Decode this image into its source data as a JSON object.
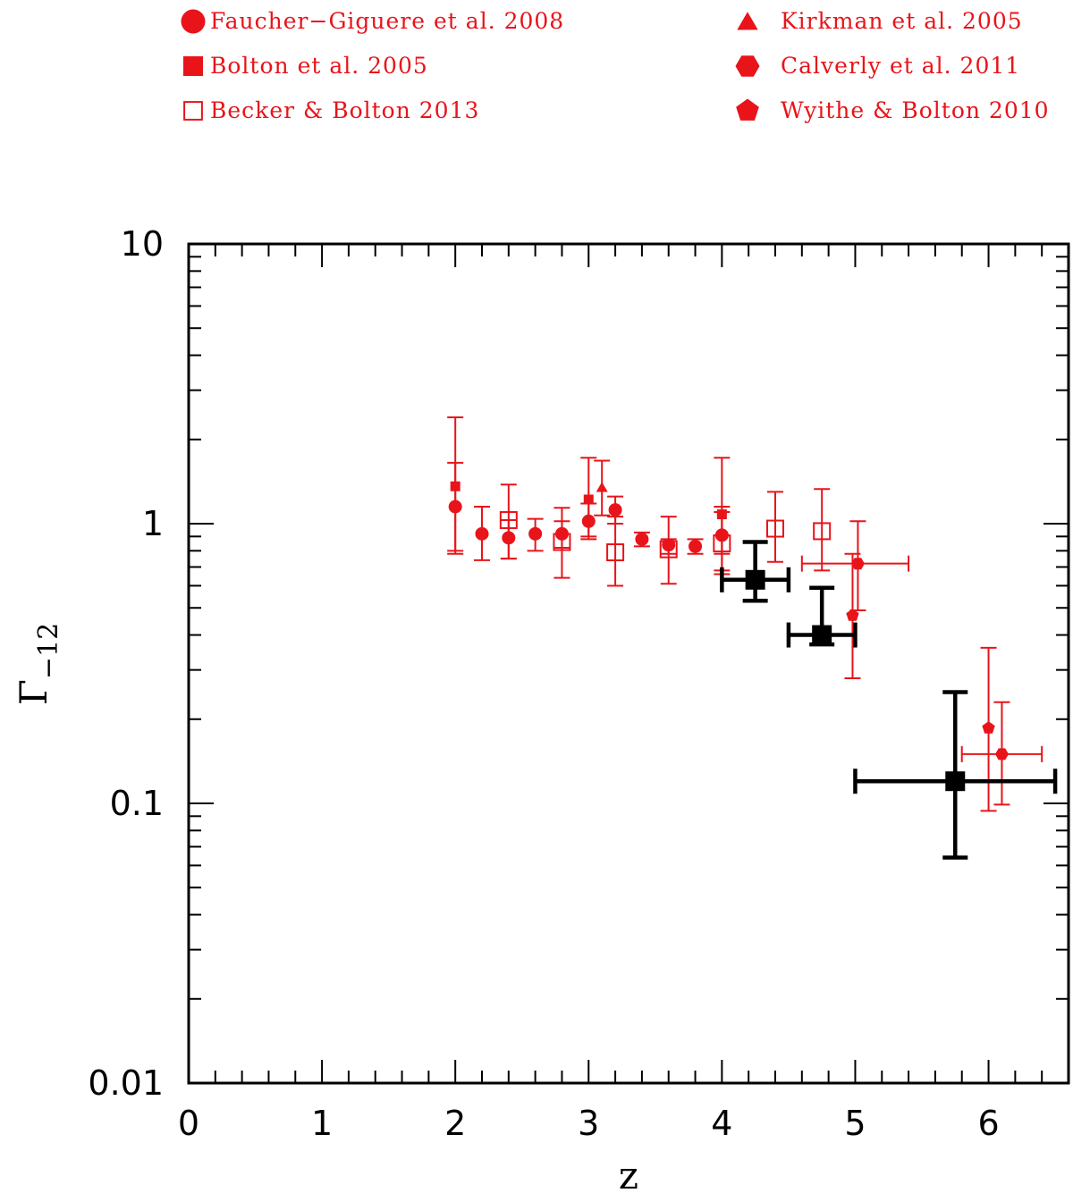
{
  "chart_data": {
    "type": "scatter",
    "xlabel": "z",
    "ylabel_main": "Γ",
    "ylabel_sub": "−12",
    "xlim": [
      0,
      6.6
    ],
    "ylim": [
      0.01,
      10
    ],
    "yscale": "log",
    "x_ticks": [
      {
        "value": 0,
        "label": "0"
      },
      {
        "value": 1,
        "label": "1"
      },
      {
        "value": 2,
        "label": "2"
      },
      {
        "value": 3,
        "label": "3"
      },
      {
        "value": 4,
        "label": "4"
      },
      {
        "value": 5,
        "label": "5"
      },
      {
        "value": 6,
        "label": "6"
      }
    ],
    "y_ticks": [
      {
        "value": 0.01,
        "label": "0.01"
      },
      {
        "value": 0.1,
        "label": "0.1"
      },
      {
        "value": 1,
        "label": "1"
      },
      {
        "value": 10,
        "label": "10"
      }
    ],
    "legend_position": "top",
    "series": [
      {
        "name": "Faucher−Giguere et al. 2008",
        "marker": "circle",
        "color": "#e8141a",
        "legend_col": 0,
        "legend_row": 0,
        "points": [
          {
            "x": 2.0,
            "y": 1.15,
            "ylo": 0.8,
            "yhi": 1.65
          },
          {
            "x": 2.2,
            "y": 0.92,
            "ylo": 0.74,
            "yhi": 1.15
          },
          {
            "x": 2.4,
            "y": 0.89,
            "ylo": 0.75,
            "yhi": 1.03
          },
          {
            "x": 2.6,
            "y": 0.92,
            "ylo": 0.8,
            "yhi": 1.04
          },
          {
            "x": 2.8,
            "y": 0.92,
            "ylo": 0.82,
            "yhi": 1.02
          },
          {
            "x": 3.0,
            "y": 1.02,
            "ylo": 0.88,
            "yhi": 1.18
          },
          {
            "x": 3.2,
            "y": 1.12,
            "ylo": 1.0,
            "yhi": 1.25
          },
          {
            "x": 3.4,
            "y": 0.88,
            "ylo": 0.83,
            "yhi": 0.93
          },
          {
            "x": 3.6,
            "y": 0.84,
            "ylo": 0.78,
            "yhi": 0.88
          },
          {
            "x": 3.8,
            "y": 0.83,
            "ylo": 0.78,
            "yhi": 0.88
          },
          {
            "x": 4.0,
            "y": 0.91,
            "ylo": 0.78,
            "yhi": 1.15
          }
        ]
      },
      {
        "name": "Bolton et al. 2005",
        "marker": "square-filled-small",
        "color": "#e8141a",
        "legend_col": 0,
        "legend_row": 1,
        "points": [
          {
            "x": 2.0,
            "y": 1.36,
            "ylo": 0.78,
            "yhi": 2.4
          },
          {
            "x": 3.0,
            "y": 1.22,
            "ylo": 0.9,
            "yhi": 1.72
          },
          {
            "x": 4.0,
            "y": 1.08,
            "ylo": 0.66,
            "yhi": 1.72
          }
        ]
      },
      {
        "name": "Becker & Bolton 2013",
        "marker": "square-open",
        "color": "#e8141a",
        "legend_col": 0,
        "legend_row": 2,
        "points": [
          {
            "x": 2.4,
            "y": 1.03,
            "ylo": 0.75,
            "yhi": 1.38
          },
          {
            "x": 2.8,
            "y": 0.86,
            "ylo": 0.64,
            "yhi": 1.14
          },
          {
            "x": 3.2,
            "y": 0.79,
            "ylo": 0.6,
            "yhi": 1.06
          },
          {
            "x": 3.6,
            "y": 0.81,
            "ylo": 0.61,
            "yhi": 1.06
          },
          {
            "x": 4.0,
            "y": 0.85,
            "ylo": 0.68,
            "yhi": 1.1
          },
          {
            "x": 4.4,
            "y": 0.96,
            "ylo": 0.73,
            "yhi": 1.3
          },
          {
            "x": 4.75,
            "y": 0.94,
            "ylo": 0.68,
            "yhi": 1.33
          }
        ]
      },
      {
        "name": "Kirkman et al. 2005",
        "marker": "triangle",
        "color": "#e8141a",
        "legend_col": 1,
        "legend_row": 0,
        "points": [
          {
            "x": 3.1,
            "y": 1.35,
            "ylo": 1.07,
            "yhi": 1.68
          }
        ]
      },
      {
        "name": "Calverly et al. 2011",
        "marker": "hexagon",
        "color": "#e8141a",
        "legend_col": 1,
        "legend_row": 1,
        "points": [
          {
            "x": 5.02,
            "y": 0.72,
            "ylo": 0.49,
            "yhi": 1.02,
            "xlo": 4.6,
            "xhi": 5.4
          },
          {
            "x": 6.1,
            "y": 0.15,
            "ylo": 0.099,
            "yhi": 0.23,
            "xlo": 5.8,
            "xhi": 6.4
          }
        ]
      },
      {
        "name": "Wyithe & Bolton 2010",
        "marker": "pentagon",
        "color": "#e8141a",
        "legend_col": 1,
        "legend_row": 2,
        "points": [
          {
            "x": 4.98,
            "y": 0.47,
            "ylo": 0.28,
            "yhi": 0.78
          },
          {
            "x": 6.0,
            "y": 0.186,
            "ylo": 0.094,
            "yhi": 0.36
          }
        ]
      },
      {
        "marker": "square-filled-large",
        "color": "#000000",
        "points": [
          {
            "x": 4.25,
            "y": 0.63,
            "ylo": 0.53,
            "yhi": 0.86,
            "xlo": 4.0,
            "xhi": 4.5
          },
          {
            "x": 4.75,
            "y": 0.4,
            "ylo": 0.37,
            "yhi": 0.59,
            "xlo": 4.5,
            "xhi": 5.0
          },
          {
            "x": 5.75,
            "y": 0.12,
            "ylo": 0.064,
            "yhi": 0.25,
            "xlo": 5.0,
            "xhi": 6.5
          }
        ]
      }
    ]
  }
}
